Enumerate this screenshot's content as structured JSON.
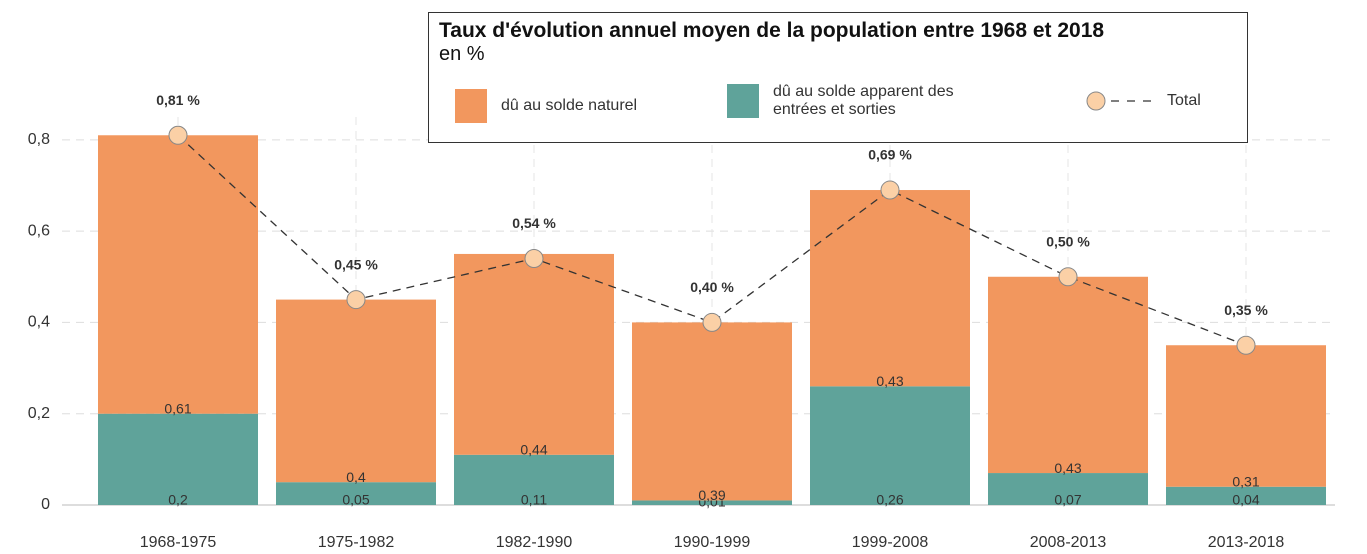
{
  "chart_data": {
    "type": "bar",
    "stacked": true,
    "title": "Taux d'évolution annuel moyen de la population entre 1968 et 2018",
    "subtitle": "en %",
    "categories": [
      "1968-1975",
      "1975-1982",
      "1982-1990",
      "1990-1999",
      "1999-2008",
      "2008-2013",
      "2013-2018"
    ],
    "series": [
      {
        "name": "dû au solde naturel",
        "color": "#f2975e",
        "values": [
          0.61,
          0.4,
          0.44,
          0.39,
          0.43,
          0.43,
          0.31
        ],
        "value_labels": [
          "0,61",
          "0,4",
          "0,44",
          "0,39",
          "0,43",
          "0,43",
          "0,31"
        ]
      },
      {
        "name": "dû au solde apparent des entrées et sorties",
        "color": "#5fa39a",
        "values": [
          0.2,
          0.05,
          0.11,
          0.01,
          0.26,
          0.07,
          0.04
        ],
        "value_labels": [
          "0,2",
          "0,05",
          "0,11",
          "0,01",
          "0,26",
          "0,07",
          "0,04"
        ]
      },
      {
        "name": "Total",
        "type": "line",
        "color": "#fbd0a6",
        "values": [
          0.81,
          0.45,
          0.54,
          0.4,
          0.69,
          0.5,
          0.35
        ],
        "value_labels": [
          "0,81 %",
          "0,45 %",
          "0,54 %",
          "0,40 %",
          "0,69 %",
          "0,50 %",
          "0,35 %"
        ]
      }
    ],
    "stack_order": [
      1,
      0
    ],
    "ylim": [
      0,
      0.85
    ],
    "yticks": [
      0,
      {
        "value": 0.2,
        "label": "0,2"
      },
      {
        "value": 0.4,
        "label": "0,4"
      },
      {
        "value": 0.6,
        "label": "0,6"
      },
      {
        "value": 0.8,
        "label": "0,8"
      }
    ],
    "grid": true
  }
}
